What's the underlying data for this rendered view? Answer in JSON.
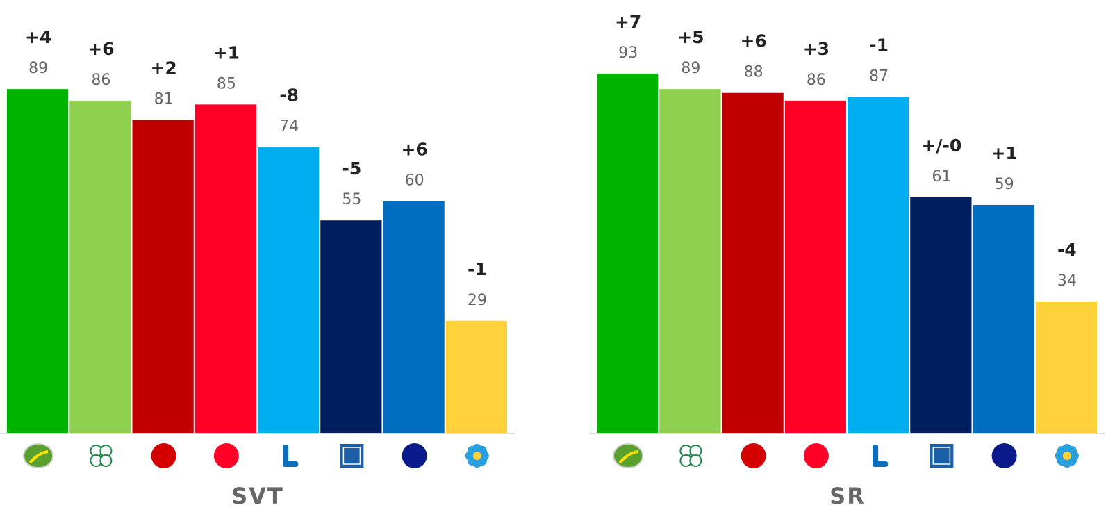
{
  "chart_data": [
    {
      "type": "bar",
      "title": "SVT",
      "categories": [
        null,
        null,
        null,
        null,
        null,
        null,
        null,
        null
      ],
      "values": [
        89,
        86,
        81,
        85,
        74,
        55,
        60,
        29
      ],
      "changes": [
        "+4",
        "+6",
        "+2",
        "+1",
        "-8",
        "-5",
        "+6",
        "-1"
      ],
      "colors": [
        "#00b400",
        "#8fd14f",
        "#c00000",
        "#ff0026",
        "#00aeef",
        "#001f5f",
        "#006ec0",
        "#ffd23c"
      ],
      "ylim": [
        0,
        100
      ]
    },
    {
      "type": "bar",
      "title": "SR",
      "categories": [
        null,
        null,
        null,
        null,
        null,
        null,
        null,
        null
      ],
      "values": [
        93,
        89,
        88,
        86,
        87,
        61,
        59,
        34
      ],
      "changes": [
        "+7",
        "+5",
        "+6",
        "+3",
        "-1",
        "+/-0",
        "+1",
        "-4"
      ],
      "colors": [
        "#00b400",
        "#8fd14f",
        "#c00000",
        "#ff0026",
        "#00aeef",
        "#001f5f",
        "#006ec0",
        "#ffd23c"
      ],
      "ylim": [
        0,
        100
      ]
    }
  ]
}
